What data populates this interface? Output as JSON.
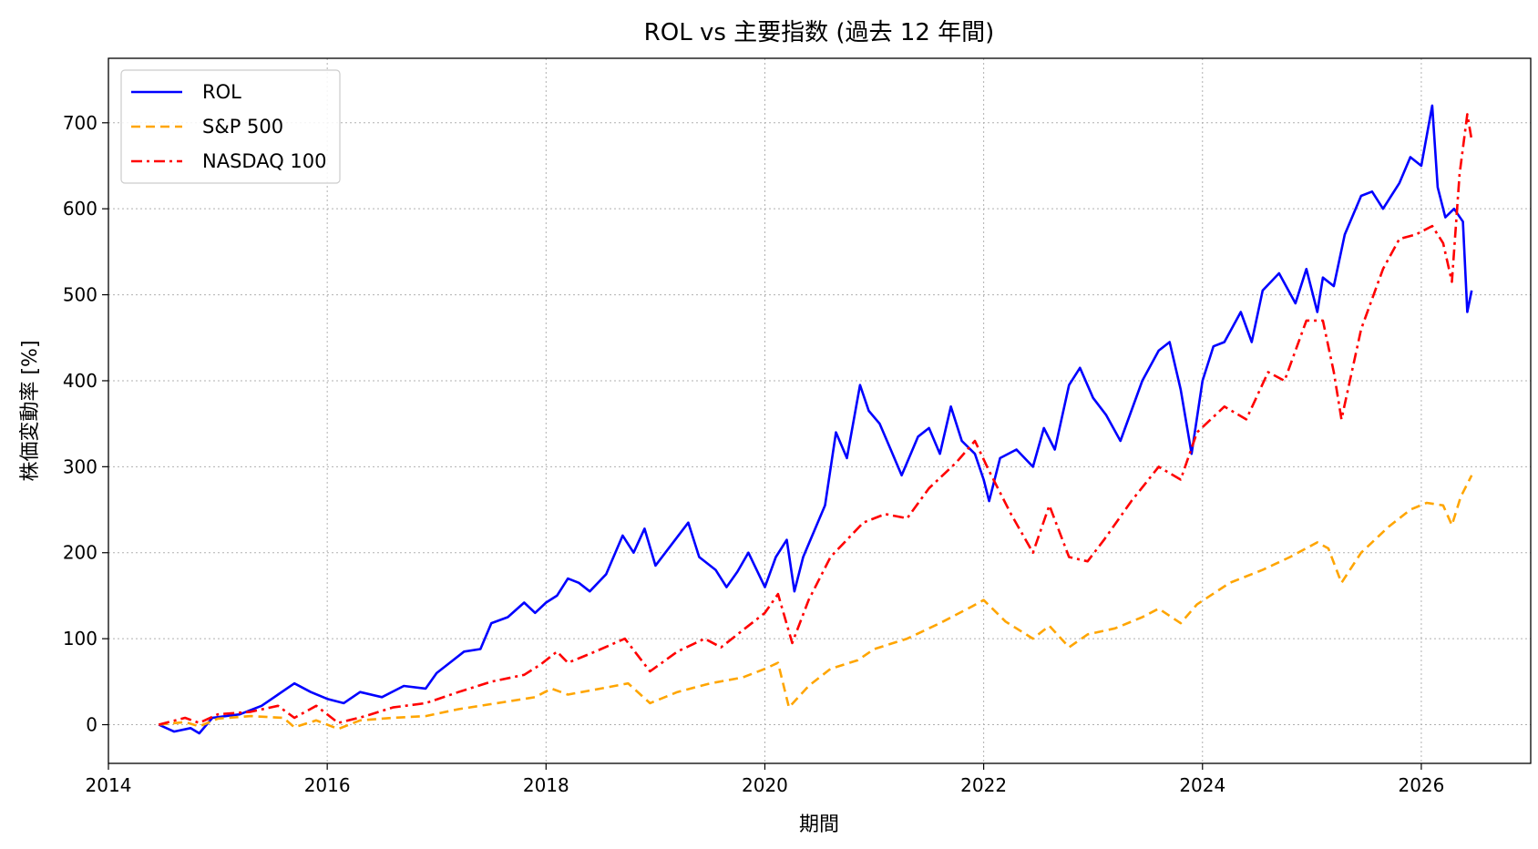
{
  "chart_data": {
    "type": "line",
    "title": "ROL vs 主要指数 (過去 12 年間)",
    "xlabel": "期間",
    "ylabel": "株価変動率 [%]",
    "xlim": [
      2014.0,
      2027.0
    ],
    "ylim": [
      -45,
      775
    ],
    "x_ticks": [
      2014,
      2016,
      2018,
      2020,
      2022,
      2024,
      2026
    ],
    "x_tick_labels": [
      "2014",
      "2016",
      "2018",
      "2020",
      "2022",
      "2024",
      "2026"
    ],
    "y_ticks": [
      0,
      100,
      200,
      300,
      400,
      500,
      600,
      700
    ],
    "y_tick_labels": [
      "0",
      "100",
      "200",
      "300",
      "400",
      "500",
      "600",
      "700"
    ],
    "grid": true,
    "legend_position": "top-left",
    "series": [
      {
        "name": "ROL",
        "color": "#0000ff",
        "dash": "solid",
        "points": [
          [
            2014.46,
            0
          ],
          [
            2014.6,
            -8
          ],
          [
            2014.75,
            -4
          ],
          [
            2014.83,
            -10
          ],
          [
            2014.95,
            8
          ],
          [
            2015.2,
            12
          ],
          [
            2015.4,
            22
          ],
          [
            2015.55,
            35
          ],
          [
            2015.7,
            48
          ],
          [
            2015.85,
            38
          ],
          [
            2016.0,
            30
          ],
          [
            2016.15,
            25
          ],
          [
            2016.3,
            38
          ],
          [
            2016.5,
            32
          ],
          [
            2016.7,
            45
          ],
          [
            2016.9,
            42
          ],
          [
            2017.0,
            60
          ],
          [
            2017.1,
            70
          ],
          [
            2017.25,
            85
          ],
          [
            2017.4,
            88
          ],
          [
            2017.5,
            118
          ],
          [
            2017.65,
            125
          ],
          [
            2017.8,
            142
          ],
          [
            2017.9,
            130
          ],
          [
            2018.0,
            142
          ],
          [
            2018.1,
            150
          ],
          [
            2018.2,
            170
          ],
          [
            2018.3,
            165
          ],
          [
            2018.4,
            155
          ],
          [
            2018.55,
            175
          ],
          [
            2018.7,
            220
          ],
          [
            2018.8,
            200
          ],
          [
            2018.9,
            228
          ],
          [
            2019.0,
            185
          ],
          [
            2019.15,
            210
          ],
          [
            2019.3,
            235
          ],
          [
            2019.4,
            195
          ],
          [
            2019.55,
            180
          ],
          [
            2019.65,
            160
          ],
          [
            2019.75,
            178
          ],
          [
            2019.85,
            200
          ],
          [
            2020.0,
            160
          ],
          [
            2020.1,
            195
          ],
          [
            2020.2,
            215
          ],
          [
            2020.27,
            155
          ],
          [
            2020.35,
            195
          ],
          [
            2020.45,
            225
          ],
          [
            2020.55,
            255
          ],
          [
            2020.65,
            340
          ],
          [
            2020.75,
            310
          ],
          [
            2020.87,
            395
          ],
          [
            2020.95,
            365
          ],
          [
            2021.05,
            350
          ],
          [
            2021.15,
            320
          ],
          [
            2021.25,
            290
          ],
          [
            2021.4,
            335
          ],
          [
            2021.5,
            345
          ],
          [
            2021.6,
            315
          ],
          [
            2021.7,
            370
          ],
          [
            2021.8,
            330
          ],
          [
            2021.92,
            315
          ],
          [
            2022.0,
            285
          ],
          [
            2022.05,
            260
          ],
          [
            2022.15,
            310
          ],
          [
            2022.3,
            320
          ],
          [
            2022.45,
            300
          ],
          [
            2022.55,
            345
          ],
          [
            2022.65,
            320
          ],
          [
            2022.78,
            395
          ],
          [
            2022.88,
            415
          ],
          [
            2023.0,
            380
          ],
          [
            2023.12,
            360
          ],
          [
            2023.25,
            330
          ],
          [
            2023.35,
            365
          ],
          [
            2023.45,
            400
          ],
          [
            2023.6,
            435
          ],
          [
            2023.7,
            445
          ],
          [
            2023.8,
            390
          ],
          [
            2023.9,
            315
          ],
          [
            2024.0,
            400
          ],
          [
            2024.1,
            440
          ],
          [
            2024.2,
            445
          ],
          [
            2024.35,
            480
          ],
          [
            2024.45,
            445
          ],
          [
            2024.55,
            505
          ],
          [
            2024.7,
            525
          ],
          [
            2024.85,
            490
          ],
          [
            2024.95,
            530
          ],
          [
            2025.05,
            480
          ],
          [
            2025.1,
            520
          ],
          [
            2025.2,
            510
          ],
          [
            2025.3,
            570
          ],
          [
            2025.45,
            615
          ],
          [
            2025.55,
            620
          ],
          [
            2025.65,
            600
          ],
          [
            2025.8,
            630
          ],
          [
            2025.9,
            660
          ],
          [
            2026.0,
            650
          ],
          [
            2026.1,
            720
          ],
          [
            2026.15,
            625
          ],
          [
            2026.22,
            590
          ],
          [
            2026.3,
            600
          ],
          [
            2026.38,
            585
          ],
          [
            2026.42,
            480
          ],
          [
            2026.46,
            505
          ]
        ]
      },
      {
        "name": "S&P 500",
        "color": "#ffa500",
        "dash": "10 6",
        "points": [
          [
            2014.46,
            0
          ],
          [
            2014.7,
            3
          ],
          [
            2014.83,
            -2
          ],
          [
            2015.0,
            7
          ],
          [
            2015.3,
            10
          ],
          [
            2015.6,
            8
          ],
          [
            2015.7,
            -3
          ],
          [
            2015.9,
            5
          ],
          [
            2016.1,
            -5
          ],
          [
            2016.3,
            5
          ],
          [
            2016.6,
            8
          ],
          [
            2016.9,
            10
          ],
          [
            2017.2,
            18
          ],
          [
            2017.5,
            24
          ],
          [
            2017.9,
            32
          ],
          [
            2018.05,
            42
          ],
          [
            2018.2,
            35
          ],
          [
            2018.5,
            42
          ],
          [
            2018.75,
            48
          ],
          [
            2018.95,
            25
          ],
          [
            2019.2,
            38
          ],
          [
            2019.5,
            48
          ],
          [
            2019.8,
            55
          ],
          [
            2020.0,
            65
          ],
          [
            2020.12,
            72
          ],
          [
            2020.22,
            20
          ],
          [
            2020.4,
            45
          ],
          [
            2020.6,
            65
          ],
          [
            2020.85,
            75
          ],
          [
            2021.0,
            88
          ],
          [
            2021.3,
            100
          ],
          [
            2021.6,
            118
          ],
          [
            2021.9,
            138
          ],
          [
            2022.0,
            145
          ],
          [
            2022.2,
            120
          ],
          [
            2022.45,
            100
          ],
          [
            2022.6,
            115
          ],
          [
            2022.78,
            90
          ],
          [
            2022.95,
            105
          ],
          [
            2023.2,
            112
          ],
          [
            2023.45,
            125
          ],
          [
            2023.6,
            135
          ],
          [
            2023.8,
            118
          ],
          [
            2023.95,
            140
          ],
          [
            2024.25,
            165
          ],
          [
            2024.55,
            180
          ],
          [
            2024.8,
            195
          ],
          [
            2025.05,
            212
          ],
          [
            2025.15,
            205
          ],
          [
            2025.27,
            165
          ],
          [
            2025.45,
            200
          ],
          [
            2025.7,
            230
          ],
          [
            2025.9,
            250
          ],
          [
            2026.05,
            258
          ],
          [
            2026.2,
            255
          ],
          [
            2026.28,
            232
          ],
          [
            2026.36,
            265
          ],
          [
            2026.46,
            290
          ]
        ]
      },
      {
        "name": "NASDAQ 100",
        "color": "#ff0000",
        "dash": "12 5 3 5",
        "points": [
          [
            2014.46,
            0
          ],
          [
            2014.7,
            8
          ],
          [
            2014.83,
            2
          ],
          [
            2015.0,
            12
          ],
          [
            2015.3,
            15
          ],
          [
            2015.55,
            22
          ],
          [
            2015.7,
            8
          ],
          [
            2015.9,
            22
          ],
          [
            2016.1,
            2
          ],
          [
            2016.35,
            10
          ],
          [
            2016.6,
            20
          ],
          [
            2016.9,
            25
          ],
          [
            2017.2,
            38
          ],
          [
            2017.5,
            50
          ],
          [
            2017.8,
            58
          ],
          [
            2017.95,
            70
          ],
          [
            2018.1,
            85
          ],
          [
            2018.2,
            72
          ],
          [
            2018.45,
            85
          ],
          [
            2018.72,
            100
          ],
          [
            2018.95,
            62
          ],
          [
            2019.2,
            85
          ],
          [
            2019.45,
            100
          ],
          [
            2019.6,
            90
          ],
          [
            2019.8,
            110
          ],
          [
            2020.0,
            130
          ],
          [
            2020.12,
            152
          ],
          [
            2020.25,
            95
          ],
          [
            2020.4,
            145
          ],
          [
            2020.6,
            195
          ],
          [
            2020.75,
            215
          ],
          [
            2020.9,
            235
          ],
          [
            2021.1,
            245
          ],
          [
            2021.3,
            240
          ],
          [
            2021.5,
            275
          ],
          [
            2021.75,
            305
          ],
          [
            2021.92,
            330
          ],
          [
            2022.05,
            295
          ],
          [
            2022.25,
            245
          ],
          [
            2022.45,
            200
          ],
          [
            2022.6,
            255
          ],
          [
            2022.78,
            195
          ],
          [
            2022.95,
            190
          ],
          [
            2023.1,
            215
          ],
          [
            2023.35,
            260
          ],
          [
            2023.6,
            300
          ],
          [
            2023.8,
            285
          ],
          [
            2023.95,
            340
          ],
          [
            2024.2,
            370
          ],
          [
            2024.4,
            355
          ],
          [
            2024.6,
            410
          ],
          [
            2024.75,
            400
          ],
          [
            2024.95,
            470
          ],
          [
            2025.1,
            470
          ],
          [
            2025.2,
            410
          ],
          [
            2025.27,
            355
          ],
          [
            2025.45,
            460
          ],
          [
            2025.65,
            530
          ],
          [
            2025.8,
            565
          ],
          [
            2025.95,
            570
          ],
          [
            2026.1,
            580
          ],
          [
            2026.2,
            560
          ],
          [
            2026.28,
            515
          ],
          [
            2026.35,
            640
          ],
          [
            2026.42,
            710
          ],
          [
            2026.46,
            680
          ]
        ]
      }
    ]
  }
}
